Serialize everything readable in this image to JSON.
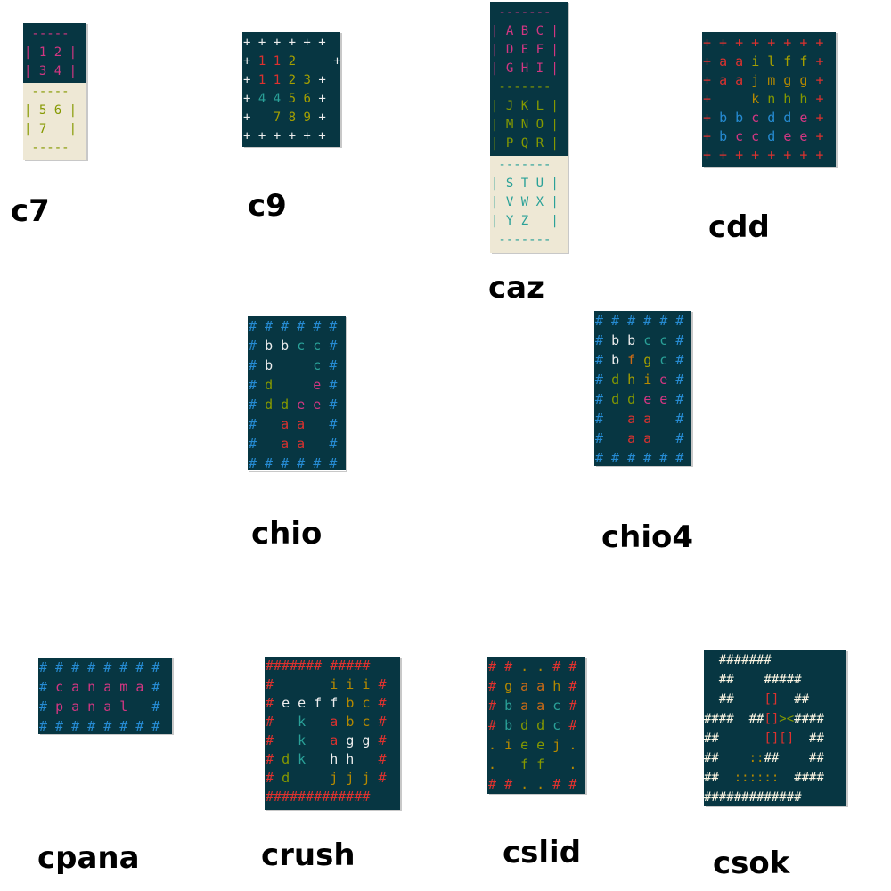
{
  "games": [
    {
      "id": "c7",
      "caption": "c7"
    },
    {
      "id": "c9",
      "caption": "c9"
    },
    {
      "id": "caz",
      "caption": "caz"
    },
    {
      "id": "cdd",
      "caption": "cdd"
    },
    {
      "id": "chio",
      "caption": "chio"
    },
    {
      "id": "chio4",
      "caption": "chio4"
    },
    {
      "id": "cpana",
      "caption": "cpana"
    },
    {
      "id": "crush",
      "caption": "crush"
    },
    {
      "id": "cslid",
      "caption": "cslid"
    },
    {
      "id": "csok",
      "caption": "csok"
    }
  ],
  "colors": {
    "panel_dark": "#073642",
    "panel_light": "#eee8d5",
    "magenta": "#d33682",
    "olive": "#859900",
    "cyan": "#2aa198",
    "blue": "#268bd2",
    "red": "#dc322f",
    "white": "#eeeeee"
  }
}
